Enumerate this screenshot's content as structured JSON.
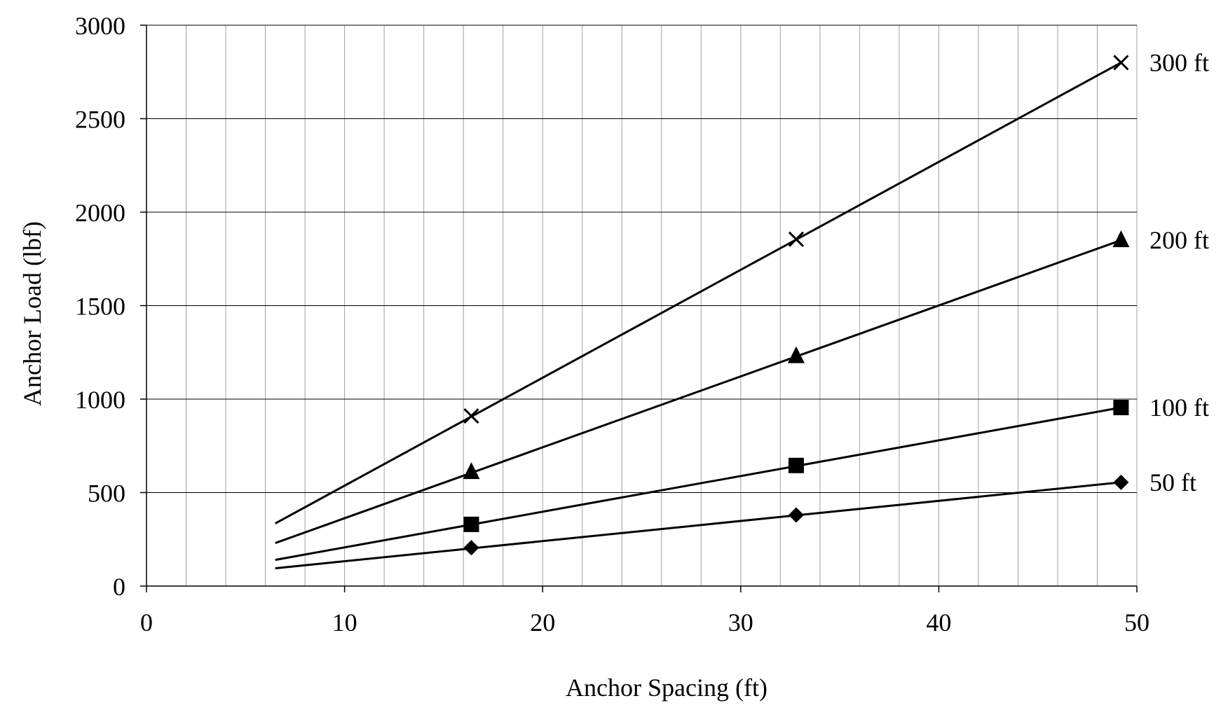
{
  "chart_data": {
    "type": "line",
    "title": "",
    "xlabel": "Anchor Spacing (ft)",
    "ylabel": "Anchor Load (lbf)",
    "xlim": [
      0,
      50
    ],
    "ylim": [
      0,
      3000
    ],
    "x_ticks": [
      0,
      10,
      20,
      30,
      40,
      50
    ],
    "y_ticks": [
      0,
      500,
      1000,
      1500,
      2000,
      2500,
      3000
    ],
    "x_tick_labels": [
      "0",
      "10",
      "20",
      "30",
      "40",
      "50"
    ],
    "y_tick_labels": [
      "0",
      "500",
      "1000",
      "1500",
      "2000",
      "2500",
      "3000"
    ],
    "grid": {
      "major_y": true,
      "minor_x_step": 2
    },
    "legend": "none",
    "colors": {
      "line": "#000000",
      "grid": "#000000",
      "minor_grid": "#a0a0a0"
    },
    "series": [
      {
        "name": "50 ft",
        "marker": "diamond",
        "line": [
          [
            6.5,
            95
          ],
          [
            49.2,
            555
          ]
        ],
        "points": [
          [
            16.4,
            205
          ],
          [
            32.8,
            380
          ],
          [
            49.2,
            555
          ]
        ]
      },
      {
        "name": "100 ft",
        "marker": "square",
        "line": [
          [
            6.5,
            140
          ],
          [
            49.2,
            955
          ]
        ],
        "points": [
          [
            16.4,
            330
          ],
          [
            32.8,
            645
          ],
          [
            49.2,
            955
          ]
        ]
      },
      {
        "name": "200 ft",
        "marker": "triangle",
        "line": [
          [
            6.5,
            230
          ],
          [
            49.2,
            1850
          ]
        ],
        "points": [
          [
            16.4,
            610
          ],
          [
            32.8,
            1230
          ],
          [
            49.2,
            1850
          ]
        ]
      },
      {
        "name": "300 ft",
        "marker": "x",
        "line": [
          [
            6.5,
            335
          ],
          [
            49.2,
            2800
          ]
        ],
        "points": [
          [
            16.4,
            910
          ],
          [
            32.8,
            1855
          ],
          [
            49.2,
            2800
          ]
        ]
      }
    ]
  }
}
